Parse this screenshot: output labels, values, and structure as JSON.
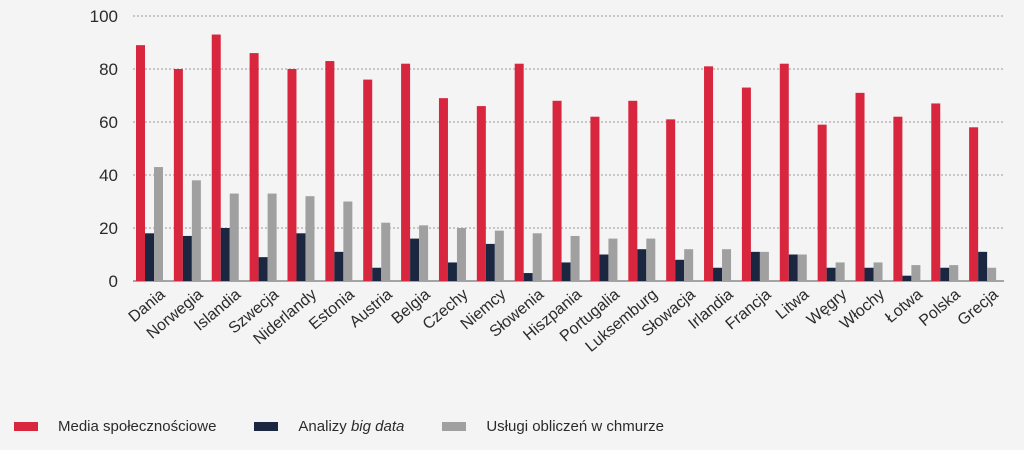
{
  "chart_data": {
    "type": "bar",
    "categories": [
      "Dania",
      "Norwegia",
      "Islandia",
      "Szwecja",
      "Niderlandy",
      "Estonia",
      "Austria",
      "Belgia",
      "Czechy",
      "Niemcy",
      "Słowenia",
      "Hiszpania",
      "Portugalia",
      "Luksemburg",
      "Słowacja",
      "Irlandia",
      "Francja",
      "Litwa",
      "Węgry",
      "Włochy",
      "Łotwa",
      "Polska",
      "Grecja"
    ],
    "series": [
      {
        "name": "Media społecznościowe",
        "color": "#d7263d",
        "values": [
          89,
          80,
          93,
          86,
          80,
          83,
          76,
          82,
          69,
          66,
          82,
          68,
          62,
          68,
          61,
          81,
          73,
          82,
          59,
          71,
          62,
          67,
          58
        ]
      },
      {
        "name": "Analizy big data",
        "color": "#1b2741",
        "values": [
          18,
          17,
          20,
          9,
          18,
          11,
          5,
          16,
          7,
          14,
          3,
          7,
          10,
          12,
          8,
          5,
          11,
          10,
          5,
          5,
          2,
          5,
          11
        ]
      },
      {
        "name": "Usługi obliczeń w chmurze",
        "color": "#a0a0a0",
        "values": [
          43,
          38,
          33,
          33,
          32,
          30,
          22,
          21,
          20,
          19,
          18,
          17,
          16,
          16,
          12,
          12,
          11,
          10,
          7,
          7,
          6,
          6,
          5
        ]
      }
    ],
    "yticks": [
      "0",
      "20",
      "40",
      "60",
      "80",
      "100"
    ],
    "ylim": [
      0,
      100
    ],
    "grid": true,
    "legend_position": "bottom-left"
  },
  "legend": {
    "social": "Media społecznościowe",
    "bigdata_prefix": "Analizy ",
    "bigdata_italic": "big data",
    "cloud": "Usługi obliczeń w chmurze"
  },
  "colors": {
    "social": "#d7263d",
    "bigdata": "#1b2741",
    "cloud": "#a0a0a0"
  }
}
